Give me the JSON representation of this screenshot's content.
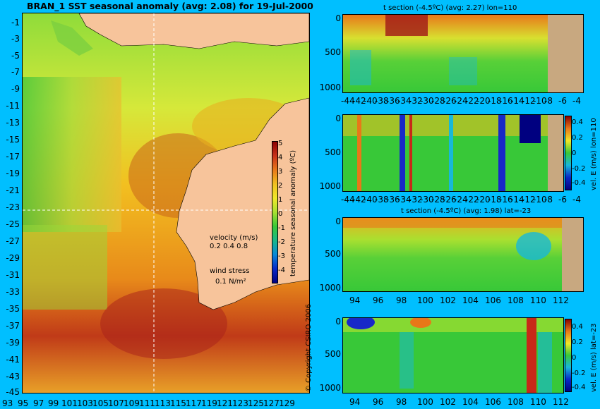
{
  "map": {
    "title": "BRAN_1  SST seasonal anomaly  (avg: 2.08) for 19-Jul-2000",
    "lat_labels": [
      "-1",
      "-3",
      "-5",
      "-7",
      "-9",
      "-11",
      "-13",
      "-15",
      "-17",
      "-19",
      "-21",
      "-23",
      "-25",
      "-27",
      "-29",
      "-31",
      "-33",
      "-35",
      "-37",
      "-39",
      "-41",
      "-43",
      "-45"
    ],
    "lon_labels": [
      "93",
      "95",
      "97",
      "99",
      "101",
      "103",
      "105",
      "107",
      "109",
      "111",
      "113",
      "115",
      "117",
      "119",
      "121",
      "123",
      "125",
      "127",
      "129"
    ],
    "colorbar": {
      "label": "temperature seasonal anomaly (ºC)",
      "ticks": [
        "5",
        "4",
        "3",
        "2",
        "1",
        "0",
        "-1",
        "-2",
        "-3",
        "-4"
      ]
    },
    "velocity_legend": {
      "title": "velocity (m/s)",
      "scale_values": "0.2 0.4 0.8",
      "wind_title": "wind stress",
      "wind_value": "0.1 N/m²"
    },
    "copyright": "© Copyright CSIRO 2006"
  },
  "sections": [
    {
      "title": "t section (-4.5ºC) (avg: 2.27) lon=110",
      "y_ticks": [
        "0",
        "500",
        "1000"
      ],
      "x_ticks": [
        "-44",
        "-42",
        "-40",
        "-38",
        "-36",
        "-34",
        "-32",
        "-30",
        "-28",
        "-26",
        "-24",
        "-22",
        "-20",
        "-18",
        "-16",
        "-14",
        "-12",
        "-10",
        "-8",
        "-6",
        "-4"
      ],
      "colorbar_label": "",
      "colorbar_ticks": []
    },
    {
      "title": "",
      "y_ticks": [
        "0",
        "500",
        "1000"
      ],
      "x_ticks": [
        "-44",
        "-42",
        "-40",
        "-38",
        "-36",
        "-34",
        "-32",
        "-30",
        "-28",
        "-26",
        "-24",
        "-22",
        "-20",
        "-18",
        "-16",
        "-14",
        "-12",
        "-10",
        "-8",
        "-6",
        "-4"
      ],
      "colorbar_label": "vel. E (m/s) lon=110",
      "colorbar_ticks": [
        "0.4",
        "0.2",
        "0",
        "-0.2",
        "-0.4"
      ]
    },
    {
      "title": "t section (-4.5ºC) (avg: 1.98) lat=-23",
      "y_ticks": [
        "0",
        "500",
        "1000"
      ],
      "x_ticks": [
        "94",
        "96",
        "98",
        "100",
        "102",
        "104",
        "106",
        "108",
        "110",
        "112"
      ],
      "colorbar_label": "",
      "colorbar_ticks": []
    },
    {
      "title": "",
      "y_ticks": [
        "0",
        "500",
        "1000"
      ],
      "x_ticks": [
        "94",
        "96",
        "98",
        "100",
        "102",
        "104",
        "106",
        "108",
        "110",
        "112"
      ],
      "colorbar_label": "vel. E (m/s) lat=-23",
      "colorbar_ticks": [
        "0.4",
        "0.2",
        "0",
        "-0.2",
        "-0.4"
      ]
    }
  ]
}
